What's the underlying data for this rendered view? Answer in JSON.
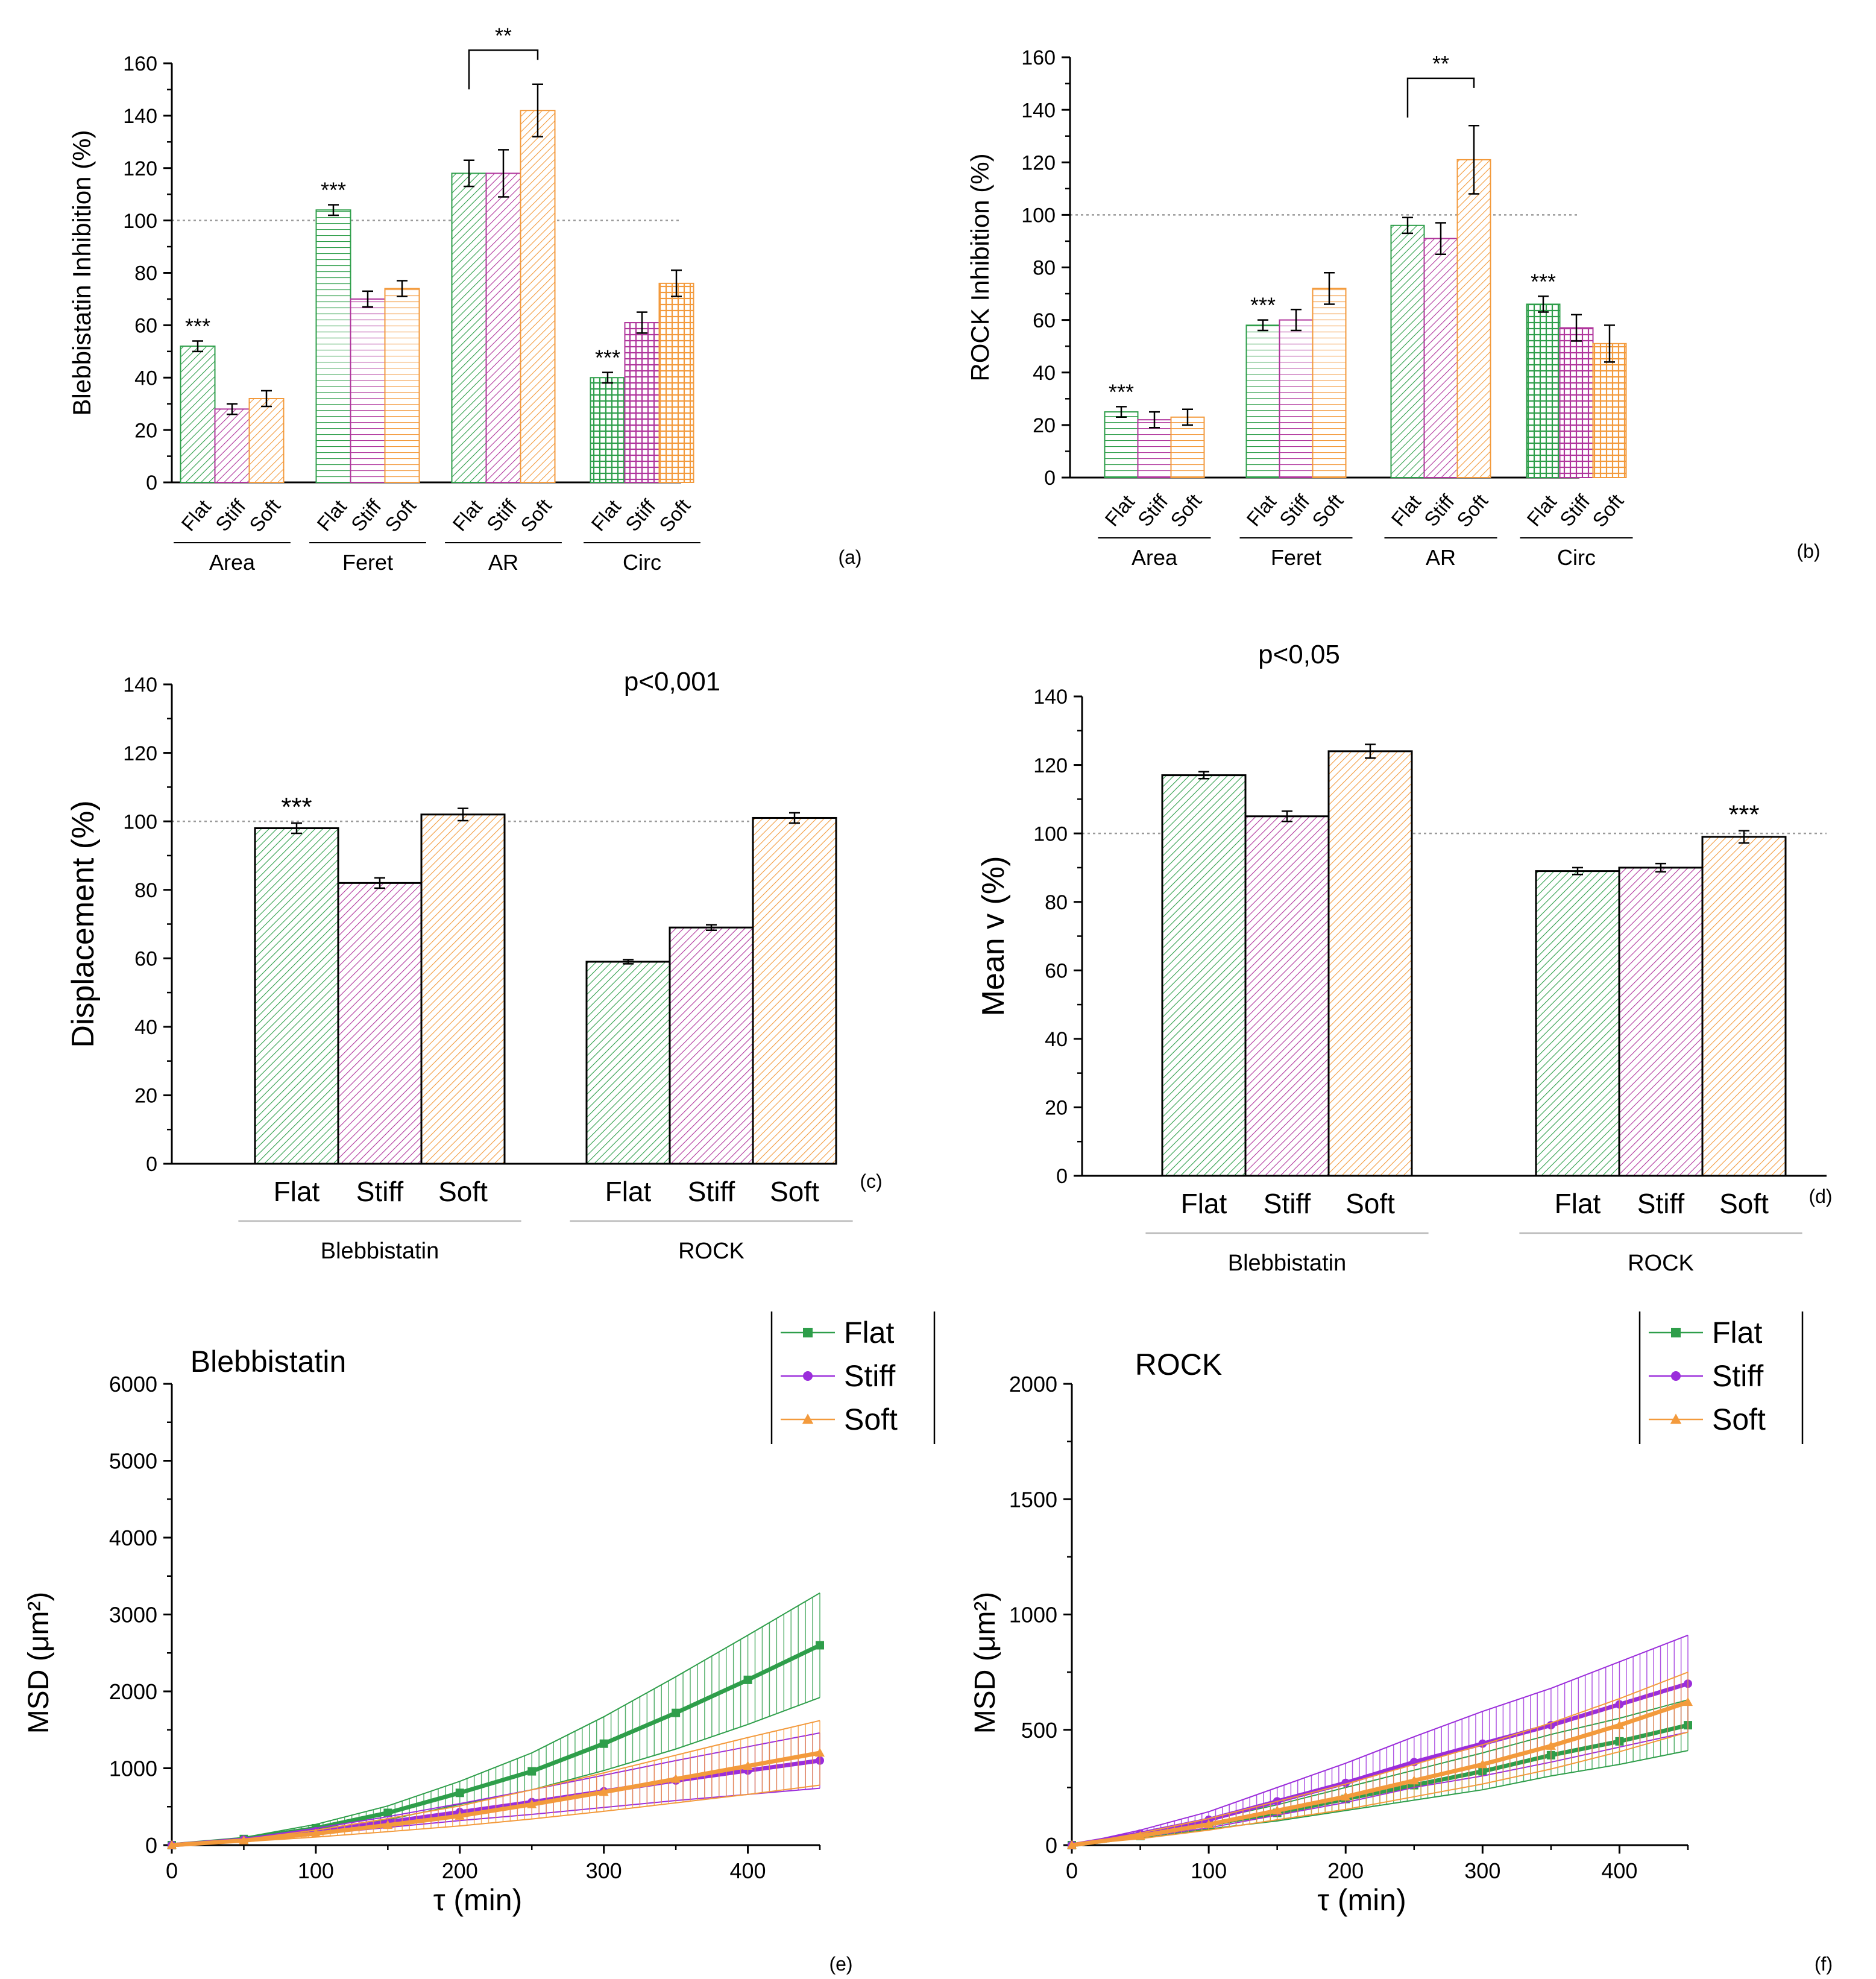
{
  "colors": {
    "flat": "#2e9e4a",
    "stiff": "#b0369c",
    "soft": "#f39a3c",
    "axis": "#000000",
    "ref": "#9a9a9a"
  },
  "chart_data": [
    {
      "id": "a",
      "type": "bar",
      "panel_label": "(a)",
      "ylabel": "Blebbistatin Inhibition (%)",
      "ylim": [
        0,
        160
      ],
      "yticks": [
        0,
        20,
        40,
        60,
        80,
        100,
        120,
        140,
        160
      ],
      "reference_line": 100,
      "series_names": [
        "Flat",
        "Stiff",
        "Soft"
      ],
      "groups": [
        {
          "name": "Area",
          "values": [
            52,
            28,
            32
          ],
          "errors": [
            2,
            2,
            3
          ],
          "annotation": "***",
          "annotated_bar": 0
        },
        {
          "name": "Feret",
          "values": [
            104,
            70,
            74
          ],
          "errors": [
            2,
            3,
            3
          ],
          "annotation": "***",
          "annotated_bar": 0
        },
        {
          "name": "AR",
          "values": [
            118,
            118,
            142
          ],
          "errors": [
            5,
            9,
            10
          ],
          "annotation": "",
          "annotated_bar": 0
        },
        {
          "name": "Circ",
          "values": [
            40,
            61,
            76
          ],
          "errors": [
            2,
            4,
            5
          ],
          "annotation": "***",
          "annotated_bar": 0
        }
      ],
      "bracket": {
        "group": 2,
        "from": 0,
        "to": 2,
        "y": 165,
        "label": "**"
      }
    },
    {
      "id": "b",
      "type": "bar",
      "panel_label": "(b)",
      "ylabel": "ROCK Inhibition (%)",
      "ylim": [
        0,
        160
      ],
      "yticks": [
        0,
        20,
        40,
        60,
        80,
        100,
        120,
        140,
        160
      ],
      "reference_line": 100,
      "series_names": [
        "Flat",
        "Stiff",
        "Soft"
      ],
      "groups": [
        {
          "name": "Area",
          "values": [
            25,
            22,
            23
          ],
          "errors": [
            2,
            3,
            3
          ],
          "annotation": "***",
          "annotated_bar": 0
        },
        {
          "name": "Feret",
          "values": [
            58,
            60,
            72
          ],
          "errors": [
            2,
            4,
            6
          ],
          "annotation": "***",
          "annotated_bar": 0
        },
        {
          "name": "AR",
          "values": [
            96,
            91,
            121
          ],
          "errors": [
            3,
            6,
            13
          ],
          "annotation": "",
          "annotated_bar": 0
        },
        {
          "name": "Circ",
          "values": [
            66,
            57,
            51
          ],
          "errors": [
            3,
            5,
            7
          ],
          "annotation": "***",
          "annotated_bar": 0
        }
      ],
      "bracket": {
        "group": 2,
        "from": 0,
        "to": 2,
        "y": 152,
        "label": "**"
      }
    },
    {
      "id": "c",
      "type": "bar",
      "panel_label": "(c)",
      "ylabel": "Displacement (%)",
      "annotation_text": "p<0,001",
      "ylim": [
        0,
        140
      ],
      "yticks": [
        0,
        20,
        40,
        60,
        80,
        100,
        120,
        140
      ],
      "reference_line": 100,
      "series_names": [
        "Flat",
        "Stiff",
        "Soft"
      ],
      "groups": [
        {
          "name": "Blebbistatin",
          "values": [
            98,
            82,
            102
          ],
          "errors": [
            1.5,
            1.5,
            1.8
          ],
          "annotation": "***",
          "annotated_bar": 0
        },
        {
          "name": "ROCK",
          "values": [
            59,
            69,
            101
          ],
          "errors": [
            0.6,
            0.8,
            1.5
          ],
          "annotation": "",
          "annotated_bar": 0
        }
      ]
    },
    {
      "id": "d",
      "type": "bar",
      "panel_label": "(d)",
      "ylabel": "Mean v (%)",
      "annotation_text": "p<0,05",
      "ylim": [
        0,
        140
      ],
      "yticks": [
        0,
        20,
        40,
        60,
        80,
        100,
        120,
        140
      ],
      "reference_line": 100,
      "series_names": [
        "Flat",
        "Stiff",
        "Soft"
      ],
      "groups": [
        {
          "name": "Blebbistatin",
          "values": [
            117,
            105,
            124
          ],
          "errors": [
            1,
            1.5,
            2
          ],
          "annotation": "",
          "annotated_bar": 0
        },
        {
          "name": "ROCK",
          "values": [
            89,
            90,
            99
          ],
          "errors": [
            1,
            1.2,
            1.8
          ],
          "annotation": "***",
          "annotated_bar": 2
        }
      ]
    },
    {
      "id": "e",
      "type": "line",
      "panel_label": "(e)",
      "title": "Blebbistatin",
      "xlabel": "τ (min)",
      "ylabel": "MSD (μm²)",
      "xlim": [
        0,
        450
      ],
      "ylim": [
        0,
        6000
      ],
      "xticks": [
        0,
        100,
        200,
        300,
        400
      ],
      "yticks": [
        0,
        1000,
        2000,
        3000,
        4000,
        5000,
        6000
      ],
      "legend_position": "top-right",
      "series": [
        {
          "name": "Flat",
          "marker": "square",
          "x": [
            0,
            50,
            100,
            150,
            200,
            250,
            300,
            350,
            400,
            450
          ],
          "y": [
            0,
            80,
            220,
            420,
            680,
            960,
            1320,
            1720,
            2150,
            2600
          ],
          "err": [
            0,
            20,
            50,
            90,
            150,
            240,
            350,
            470,
            580,
            680
          ]
        },
        {
          "name": "Stiff",
          "marker": "circle",
          "x": [
            0,
            50,
            100,
            150,
            200,
            250,
            300,
            350,
            400,
            450
          ],
          "y": [
            0,
            70,
            180,
            300,
            430,
            560,
            700,
            840,
            970,
            1100
          ],
          "err": [
            0,
            15,
            40,
            70,
            110,
            160,
            210,
            260,
            310,
            360
          ]
        },
        {
          "name": "Soft",
          "marker": "triangle",
          "x": [
            0,
            50,
            100,
            150,
            200,
            250,
            300,
            350,
            400,
            450
          ],
          "y": [
            0,
            60,
            150,
            260,
            380,
            530,
            690,
            860,
            1030,
            1200
          ],
          "err": [
            0,
            15,
            45,
            85,
            130,
            190,
            250,
            310,
            370,
            420
          ]
        }
      ]
    },
    {
      "id": "f",
      "type": "line",
      "panel_label": "(f)",
      "title": "ROCK",
      "xlabel": "τ (min)",
      "ylabel": "MSD (μm²)",
      "xlim": [
        0,
        450
      ],
      "ylim": [
        0,
        2000
      ],
      "xticks": [
        0,
        100,
        200,
        300,
        400
      ],
      "yticks": [
        0,
        500,
        1000,
        1500,
        2000
      ],
      "legend_position": "top-right",
      "series": [
        {
          "name": "Flat",
          "marker": "square",
          "x": [
            0,
            50,
            100,
            150,
            200,
            250,
            300,
            350,
            400,
            450
          ],
          "y": [
            0,
            40,
            90,
            140,
            200,
            260,
            320,
            390,
            450,
            520
          ],
          "err": [
            0,
            10,
            20,
            35,
            50,
            65,
            80,
            90,
            100,
            110
          ]
        },
        {
          "name": "Stiff",
          "marker": "circle",
          "x": [
            0,
            50,
            100,
            150,
            200,
            250,
            300,
            350,
            400,
            450
          ],
          "y": [
            0,
            50,
            110,
            190,
            270,
            360,
            440,
            520,
            610,
            700
          ],
          "err": [
            0,
            15,
            35,
            60,
            85,
            110,
            140,
            160,
            185,
            210
          ]
        },
        {
          "name": "Soft",
          "marker": "triangle",
          "x": [
            0,
            50,
            100,
            150,
            200,
            250,
            300,
            350,
            400,
            450
          ],
          "y": [
            0,
            40,
            90,
            150,
            210,
            280,
            350,
            430,
            520,
            620
          ],
          "err": [
            0,
            12,
            25,
            40,
            55,
            70,
            85,
            100,
            115,
            130
          ]
        }
      ]
    }
  ]
}
